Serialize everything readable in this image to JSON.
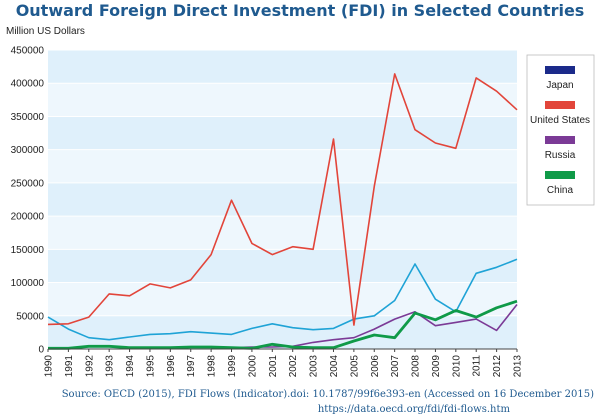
{
  "chart_data": {
    "type": "line",
    "title": "Outward Foreign Direct Investment (FDI) in Selected Countries",
    "ylabel": "Million US Dollars",
    "xlabel": "",
    "ylim": [
      0,
      450000
    ],
    "yticks": [
      0,
      50000,
      100000,
      150000,
      200000,
      250000,
      300000,
      350000,
      400000,
      450000
    ],
    "ytick_labels": [
      "0",
      "50000",
      "100000",
      "150000",
      "200000",
      "250000",
      "300000",
      "350000",
      "400000",
      "450000"
    ],
    "x": [
      "1990",
      "1991",
      "1992",
      "1993",
      "1994",
      "1995",
      "1996",
      "1997",
      "1998",
      "1999",
      "2000",
      "2001",
      "2002",
      "2003",
      "2004",
      "2005",
      "2006",
      "2007",
      "2008",
      "2009",
      "2010",
      "2011",
      "2012",
      "2013"
    ],
    "grid": true,
    "legend_position": "right",
    "series": [
      {
        "name": "Japan",
        "color": "#1b2a8a",
        "values": [
          48000,
          30000,
          17000,
          14000,
          18000,
          22000,
          23000,
          26000,
          24000,
          22000,
          31000,
          38000,
          32000,
          29000,
          31000,
          45000,
          50000,
          73000,
          128000,
          75000,
          56000,
          114000,
          123000,
          135000
        ]
      },
      {
        "name": "United States",
        "color": "#e2453a",
        "values": [
          37000,
          38000,
          48000,
          83000,
          80000,
          98000,
          92000,
          104000,
          142000,
          224000,
          159000,
          142000,
          154000,
          150000,
          316000,
          36000,
          245000,
          414000,
          330000,
          310000,
          302000,
          408000,
          388000,
          360000
        ]
      },
      {
        "name": "Russia",
        "color": "#7b3a96",
        "values": [
          null,
          null,
          null,
          null,
          null,
          null,
          null,
          null,
          1000,
          2000,
          3000,
          3000,
          4000,
          10000,
          14000,
          17000,
          30000,
          45000,
          56000,
          35000,
          40000,
          45000,
          28000,
          67000
        ]
      },
      {
        "name": "China",
        "color": "#0f9a48",
        "values": [
          1000,
          1000,
          4000,
          4000,
          2000,
          2000,
          2000,
          3000,
          3000,
          2000,
          1000,
          7000,
          3000,
          2000,
          2000,
          12000,
          21000,
          17000,
          54000,
          44000,
          58000,
          48000,
          62000,
          72000
        ]
      }
    ]
  },
  "source": {
    "line1": "Source: OECD (2015), FDI Flows (Indicator).doi: 10.1787/99f6e393-en (Accessed on 16 December 2015)",
    "line2": "https://data.oecd.org/fdi/fdi-flows.htm"
  }
}
